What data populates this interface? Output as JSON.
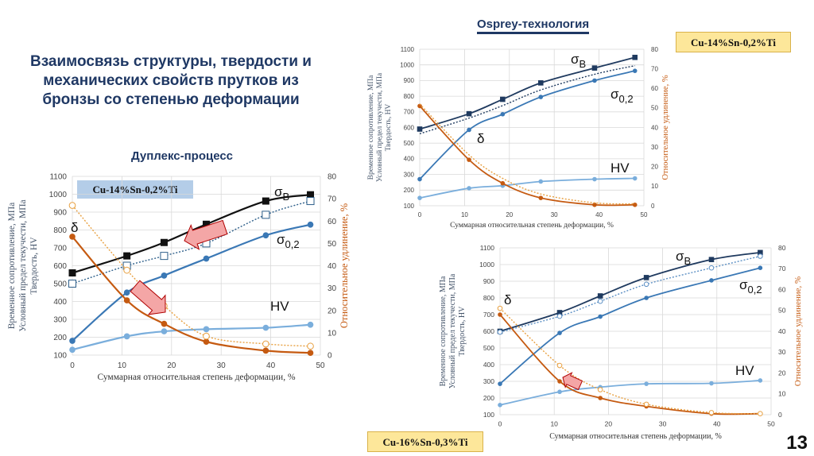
{
  "slide": {
    "title": "Взаимосвязь структуры, твердости и механических свойств прутков из бронзы со степенью деформации",
    "page_number": "13"
  },
  "colors": {
    "sigma_b_dark": "#1f3a5f",
    "sigma_b_black": "#111111",
    "sigma_02": "#3a78b5",
    "hv": "#7aaedc",
    "delta": "#c55a11",
    "delta_dotted": "#e8a040",
    "grid": "#d9d9d9",
    "arrow": "#e03030"
  },
  "chart_data": [
    {
      "type": "line",
      "title": "Дуплекс-процесс",
      "alloy": "Cu-14%Sn-0,2%Ti",
      "xlabel": "Суммарная относительная степень деформации, %",
      "ylabel": [
        "Временное сопротивление, МПа",
        "Условный предел текучести, МПа",
        "Твердость, HV"
      ],
      "y2label": "Относительное удлинение, %",
      "xlim": [
        0,
        50
      ],
      "ylim": [
        100,
        1100
      ],
      "y2lim": [
        0,
        80
      ],
      "xticks": [
        0,
        10,
        20,
        30,
        40,
        50
      ],
      "yticks": [
        100,
        200,
        300,
        400,
        500,
        600,
        700,
        800,
        900,
        1000,
        1100
      ],
      "y2ticks": [
        0,
        10,
        20,
        30,
        40,
        50,
        60,
        70,
        80
      ],
      "grid": true,
      "x": [
        0,
        11,
        18.5,
        27,
        39,
        48
      ],
      "series": [
        {
          "name": "σ",
          "sub": "В",
          "axis": "y",
          "style": "solid",
          "marker": "square",
          "color": "#111111",
          "values": [
            560,
            655,
            730,
            832,
            962,
            997
          ]
        },
        {
          "axis": "y",
          "style": "dotted",
          "marker": "open-square",
          "color": "#2e5f8a",
          "values": [
            500,
            600,
            655,
            725,
            885,
            962
          ]
        },
        {
          "name": "σ",
          "sub": "0,2",
          "axis": "y",
          "style": "solid",
          "marker": "circle",
          "color": "#3a78b5",
          "values": [
            180,
            450,
            545,
            640,
            770,
            830
          ]
        },
        {
          "name": "HV",
          "axis": "y",
          "style": "solid",
          "marker": "circle",
          "color": "#7aaedc",
          "values": [
            130,
            205,
            233,
            245,
            253,
            270
          ]
        },
        {
          "name": "δ",
          "axis": "y2",
          "style": "solid",
          "marker": "circle",
          "color": "#c55a11",
          "values": [
            53,
            24.5,
            14,
            6,
            2,
            1
          ]
        },
        {
          "axis": "y2",
          "style": "dotted",
          "marker": "open-circle",
          "color": "#e8a040",
          "values": [
            67,
            38,
            22,
            8.5,
            5,
            4
          ]
        }
      ]
    },
    {
      "type": "line",
      "title": "Osprey-технология",
      "alloy": "Cu-14%Sn-0,2%Ti",
      "xlabel": "Суммарная относительная степень деформации, %",
      "ylabel": [
        "Временное сопротивление, МПа",
        "Условный предел текучести, МПа",
        "Твердость, HV"
      ],
      "y2label": "Относительное удлинение, %",
      "xlim": [
        0,
        50
      ],
      "ylim": [
        100,
        1100
      ],
      "y2lim": [
        0,
        80
      ],
      "xticks": [
        0,
        10,
        20,
        30,
        40,
        50
      ],
      "yticks": [
        100,
        200,
        300,
        400,
        500,
        600,
        700,
        800,
        900,
        1000,
        1100
      ],
      "y2ticks": [
        0,
        10,
        20,
        30,
        40,
        50,
        60,
        70,
        80
      ],
      "grid": true,
      "x": [
        0,
        11,
        18.5,
        27,
        39,
        48
      ],
      "series": [
        {
          "name": "σ",
          "sub": "В",
          "axis": "y",
          "style": "solid",
          "marker": "square",
          "color": "#1f3a5f",
          "values": [
            590,
            688,
            780,
            885,
            980,
            1048
          ]
        },
        {
          "axis": "y",
          "style": "dotted",
          "marker": "none",
          "color": "#1f3a5f",
          "values": [
            560,
            660,
            740,
            840,
            940,
            995
          ]
        },
        {
          "name": "σ",
          "sub": "0,2",
          "axis": "y",
          "style": "solid",
          "marker": "circle",
          "color": "#3a78b5",
          "values": [
            270,
            585,
            685,
            795,
            900,
            962
          ]
        },
        {
          "name": "HV",
          "axis": "y",
          "style": "solid",
          "marker": "circle",
          "color": "#7aaedc",
          "values": [
            150,
            212,
            228,
            255,
            270,
            275
          ]
        },
        {
          "name": "δ",
          "axis": "y2",
          "style": "solid",
          "marker": "circle",
          "color": "#c55a11",
          "values": [
            51,
            23.5,
            11.5,
            4,
            0.5,
            0.5
          ]
        },
        {
          "axis": "y2",
          "style": "dotted",
          "marker": "none",
          "color": "#e8a040",
          "values": [
            52,
            26,
            14,
            6,
            1.5,
            1
          ]
        }
      ]
    },
    {
      "type": "line",
      "alloy": "Cu-16%Sn-0,3%Ti",
      "xlabel": "Суммарная относительная степень деформации, %",
      "ylabel": [
        "Временное сопротивление, МПа",
        "Условный предел текучести, МПа",
        "Твердость, HV"
      ],
      "y2label": "Относительное удлинение, %",
      "xlim": [
        0,
        50
      ],
      "ylim": [
        100,
        1100
      ],
      "y2lim": [
        0,
        80
      ],
      "xticks": [
        0,
        10,
        20,
        30,
        40,
        50
      ],
      "yticks": [
        100,
        200,
        300,
        400,
        500,
        600,
        700,
        800,
        900,
        1000,
        1100
      ],
      "y2ticks": [
        0,
        10,
        20,
        30,
        40,
        50,
        60,
        70,
        80
      ],
      "grid": true,
      "x": [
        0,
        11,
        18.5,
        27,
        39,
        48
      ],
      "series": [
        {
          "name": "σ",
          "sub": "В",
          "axis": "y",
          "style": "solid",
          "marker": "square",
          "color": "#1f3a5f",
          "values": [
            600,
            712,
            812,
            922,
            1030,
            1072
          ]
        },
        {
          "axis": "y",
          "style": "dotted",
          "marker": "open-circle",
          "color": "#5b8fc4",
          "values": [
            595,
            690,
            780,
            882,
            980,
            1050
          ]
        },
        {
          "name": "σ",
          "sub": "0,2",
          "axis": "y",
          "style": "solid",
          "marker": "circle",
          "color": "#3a78b5",
          "values": [
            285,
            590,
            688,
            800,
            905,
            980
          ]
        },
        {
          "name": "HV",
          "axis": "y",
          "style": "solid",
          "marker": "circle",
          "color": "#7aaedc",
          "values": [
            158,
            237,
            265,
            285,
            288,
            305
          ]
        },
        {
          "name": "δ",
          "axis": "y2",
          "style": "solid",
          "marker": "circle",
          "color": "#c55a11",
          "values": [
            48,
            16,
            8,
            4,
            0.5,
            0.5
          ]
        },
        {
          "axis": "y2",
          "style": "dotted",
          "marker": "open-circle",
          "color": "#e8a040",
          "values": [
            51,
            23.6,
            12,
            5,
            1,
            0.5
          ]
        }
      ]
    }
  ]
}
